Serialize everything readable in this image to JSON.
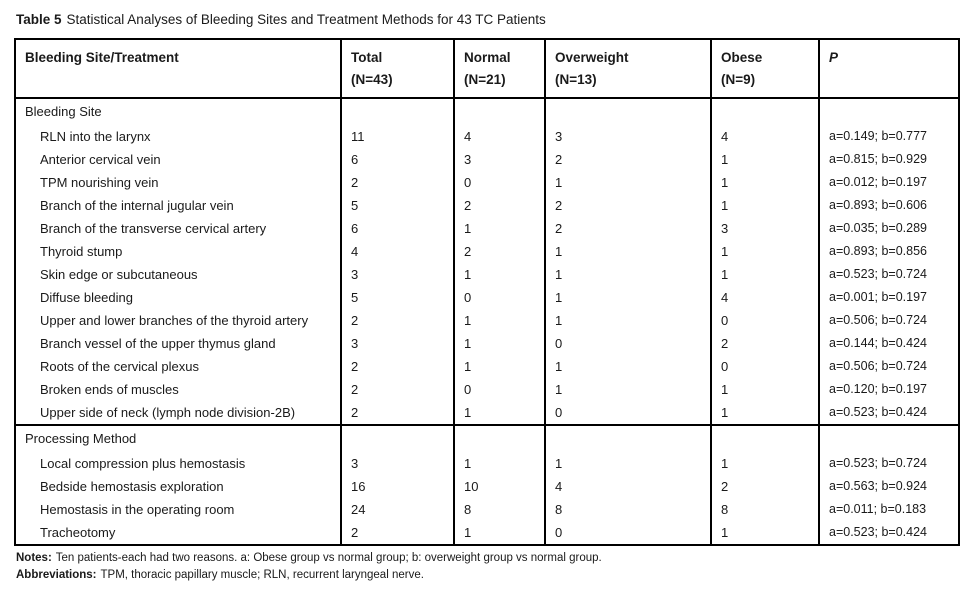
{
  "title": {
    "label": "Table 5",
    "text": "Statistical Analyses of Bleeding Sites and Treatment Methods for 43 TC Patients"
  },
  "table": {
    "columns": [
      {
        "label": "Bleeding Site/Treatment",
        "sub": ""
      },
      {
        "label": "Total",
        "sub": "(N=43)"
      },
      {
        "label": "Normal",
        "sub": "(N=21)"
      },
      {
        "label": "Overweight",
        "sub": "(N=13)"
      },
      {
        "label": "Obese",
        "sub": "(N=9)"
      },
      {
        "label": "P",
        "sub": ""
      }
    ],
    "sections": [
      {
        "header": "Bleeding Site",
        "rows": [
          {
            "label": "RLN into the larynx",
            "total": "11",
            "normal": "4",
            "overweight": "3",
            "obese": "4",
            "p": "a=0.149; b=0.777"
          },
          {
            "label": "Anterior cervical vein",
            "total": "6",
            "normal": "3",
            "overweight": "2",
            "obese": "1",
            "p": "a=0.815; b=0.929"
          },
          {
            "label": "TPM nourishing vein",
            "total": "2",
            "normal": "0",
            "overweight": "1",
            "obese": "1",
            "p": "a=0.012; b=0.197"
          },
          {
            "label": "Branch of the internal jugular vein",
            "total": "5",
            "normal": "2",
            "overweight": "2",
            "obese": "1",
            "p": "a=0.893; b=0.606"
          },
          {
            "label": "Branch of the transverse cervical artery",
            "total": "6",
            "normal": "1",
            "overweight": "2",
            "obese": "3",
            "p": "a=0.035; b=0.289"
          },
          {
            "label": "Thyroid stump",
            "total": "4",
            "normal": "2",
            "overweight": "1",
            "obese": "1",
            "p": "a=0.893; b=0.856"
          },
          {
            "label": "Skin edge or subcutaneous",
            "total": "3",
            "normal": "1",
            "overweight": "1",
            "obese": "1",
            "p": "a=0.523; b=0.724"
          },
          {
            "label": "Diffuse bleeding",
            "total": "5",
            "normal": "0",
            "overweight": "1",
            "obese": "4",
            "p": "a=0.001; b=0.197"
          },
          {
            "label": "Upper and lower branches of the thyroid artery",
            "total": "2",
            "normal": "1",
            "overweight": "1",
            "obese": "0",
            "p": "a=0.506; b=0.724"
          },
          {
            "label": "Branch vessel of the upper thymus gland",
            "total": "3",
            "normal": "1",
            "overweight": "0",
            "obese": "2",
            "p": "a=0.144; b=0.424"
          },
          {
            "label": "Roots of the cervical plexus",
            "total": "2",
            "normal": "1",
            "overweight": "1",
            "obese": "0",
            "p": "a=0.506; b=0.724"
          },
          {
            "label": "Broken ends of muscles",
            "total": "2",
            "normal": "0",
            "overweight": "1",
            "obese": "1",
            "p": "a=0.120; b=0.197"
          },
          {
            "label": "Upper side of neck (lymph node division-2B)",
            "total": "2",
            "normal": "1",
            "overweight": "0",
            "obese": "1",
            "p": "a=0.523; b=0.424"
          }
        ]
      },
      {
        "header": "Processing Method",
        "rows": [
          {
            "label": "Local compression plus hemostasis",
            "total": "3",
            "normal": "1",
            "overweight": "1",
            "obese": "1",
            "p": "a=0.523; b=0.724"
          },
          {
            "label": "Bedside hemostasis exploration",
            "total": "16",
            "normal": "10",
            "overweight": "4",
            "obese": "2",
            "p": "a=0.563; b=0.924"
          },
          {
            "label": "Hemostasis in the operating room",
            "total": "24",
            "normal": "8",
            "overweight": "8",
            "obese": "8",
            "p": "a=0.011; b=0.183"
          },
          {
            "label": "Tracheotomy",
            "total": "2",
            "normal": "1",
            "overweight": "0",
            "obese": "1",
            "p": "a=0.523; b=0.424"
          }
        ]
      }
    ]
  },
  "footnotes": {
    "notes_label": "Notes:",
    "notes_text": "Ten patients-each had two reasons. a: Obese group vs normal group; b: overweight group vs normal group.",
    "abbreviations_label": "Abbreviations:",
    "abbreviations_text": "TPM, thoracic papillary muscle; RLN, recurrent laryngeal nerve."
  }
}
